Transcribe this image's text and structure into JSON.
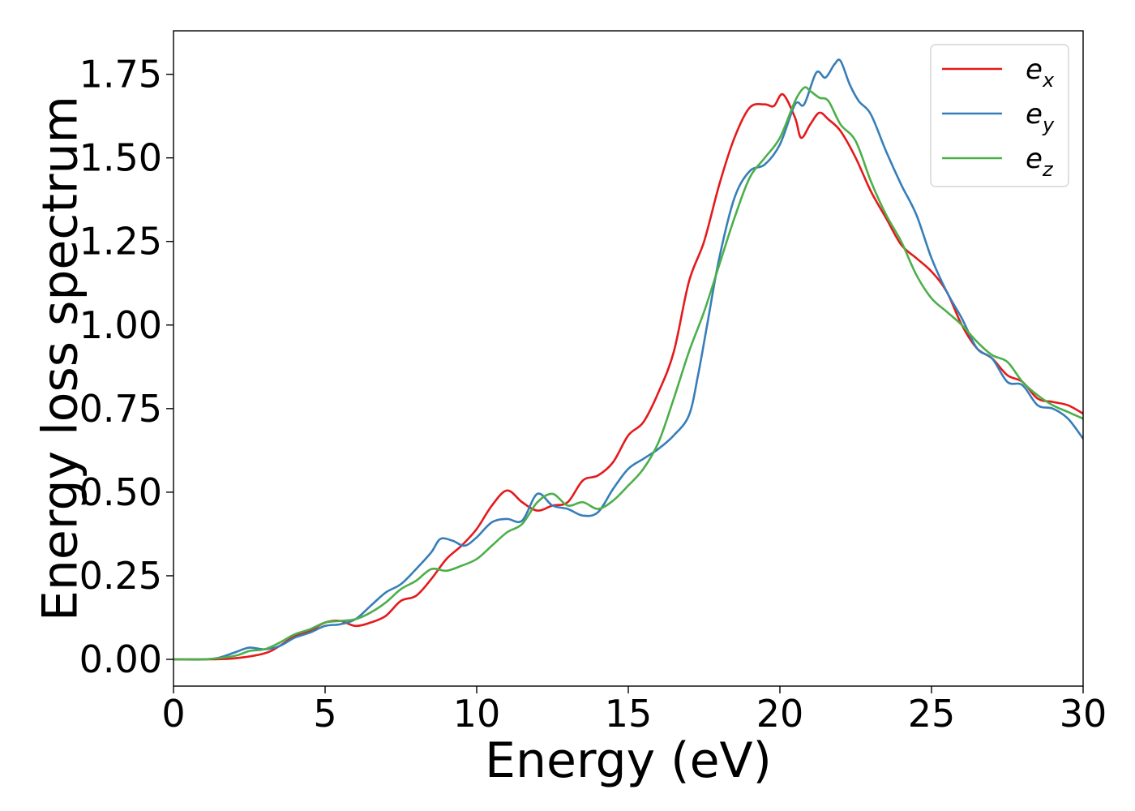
{
  "chart_data": {
    "type": "line",
    "title": "",
    "xlabel": "Energy (eV)",
    "ylabel": "Energy loss spectrum",
    "xlim": [
      0,
      30
    ],
    "ylim": [
      -0.08,
      1.88
    ],
    "xticks": [
      0,
      5,
      10,
      15,
      20,
      25,
      30
    ],
    "xtick_labels": [
      "0",
      "5",
      "10",
      "15",
      "20",
      "25",
      "30"
    ],
    "yticks": [
      0.0,
      0.25,
      0.5,
      0.75,
      1.0,
      1.25,
      1.5,
      1.75
    ],
    "ytick_labels": [
      "0.00",
      "0.25",
      "0.50",
      "0.75",
      "1.00",
      "1.25",
      "1.50",
      "1.75"
    ],
    "grid": false,
    "legend_position": "top-right",
    "series": [
      {
        "name": "e_x",
        "label_base": "e",
        "label_sub": "x",
        "color": "#e41a1c",
        "x": [
          0,
          1,
          2,
          3,
          3.5,
          4,
          4.5,
          5,
          5.5,
          6,
          6.5,
          7,
          7.5,
          8,
          8.5,
          9,
          9.5,
          10,
          10.5,
          11,
          11.5,
          12,
          12.5,
          13,
          13.5,
          14,
          14.5,
          15,
          15.5,
          16,
          16.5,
          17,
          17.5,
          18,
          18.5,
          19,
          19.5,
          19.8,
          20.1,
          20.5,
          20.7,
          21,
          21.3,
          21.6,
          22,
          22.5,
          23,
          23.5,
          24,
          24.5,
          25,
          25.5,
          26,
          26.5,
          27,
          27.5,
          28,
          28.5,
          29,
          29.5,
          30
        ],
        "y": [
          0.0,
          0.0,
          0.003,
          0.018,
          0.04,
          0.07,
          0.085,
          0.11,
          0.115,
          0.1,
          0.11,
          0.13,
          0.175,
          0.19,
          0.24,
          0.3,
          0.34,
          0.39,
          0.46,
          0.505,
          0.47,
          0.445,
          0.46,
          0.47,
          0.535,
          0.55,
          0.59,
          0.67,
          0.71,
          0.8,
          0.92,
          1.13,
          1.25,
          1.42,
          1.56,
          1.65,
          1.66,
          1.655,
          1.69,
          1.62,
          1.56,
          1.6,
          1.635,
          1.615,
          1.58,
          1.5,
          1.4,
          1.32,
          1.24,
          1.2,
          1.16,
          1.1,
          1.0,
          0.93,
          0.9,
          0.85,
          0.83,
          0.78,
          0.77,
          0.76,
          0.735
        ]
      },
      {
        "name": "e_y",
        "label_base": "e",
        "label_sub": "y",
        "color": "#377eb8",
        "x": [
          0,
          1,
          1.5,
          2,
          2.5,
          3,
          3.5,
          4,
          4.5,
          5,
          5.5,
          6,
          6.5,
          7,
          7.5,
          8,
          8.5,
          8.8,
          9.2,
          9.6,
          10,
          10.5,
          11,
          11.5,
          12,
          12.5,
          13,
          13.5,
          14,
          14.5,
          15,
          15.5,
          16,
          16.5,
          17,
          17.3,
          17.6,
          18,
          18.5,
          19,
          19.5,
          20,
          20.5,
          20.8,
          21.2,
          21.5,
          21.8,
          22,
          22.3,
          22.6,
          23,
          23.5,
          24,
          24.5,
          25,
          25.5,
          26,
          26.5,
          27,
          27.5,
          28,
          28.5,
          29,
          29.5,
          30
        ],
        "y": [
          0.0,
          0.0,
          0.005,
          0.02,
          0.035,
          0.03,
          0.04,
          0.065,
          0.08,
          0.1,
          0.105,
          0.12,
          0.16,
          0.2,
          0.225,
          0.27,
          0.32,
          0.36,
          0.355,
          0.34,
          0.365,
          0.41,
          0.42,
          0.415,
          0.495,
          0.46,
          0.45,
          0.43,
          0.44,
          0.51,
          0.57,
          0.6,
          0.63,
          0.67,
          0.73,
          0.85,
          1.0,
          1.2,
          1.38,
          1.46,
          1.48,
          1.54,
          1.66,
          1.66,
          1.755,
          1.74,
          1.78,
          1.79,
          1.72,
          1.67,
          1.63,
          1.52,
          1.42,
          1.33,
          1.2,
          1.1,
          1.02,
          0.93,
          0.9,
          0.83,
          0.82,
          0.76,
          0.75,
          0.72,
          0.66
        ]
      },
      {
        "name": "e_z",
        "label_base": "e",
        "label_sub": "z",
        "color": "#4daf4a",
        "x": [
          0,
          1,
          2,
          2.5,
          3,
          3.5,
          4,
          4.5,
          5,
          5.5,
          6,
          6.5,
          7,
          7.5,
          8,
          8.5,
          9,
          9.5,
          10,
          10.5,
          11,
          11.5,
          12,
          12.5,
          13,
          13.5,
          14,
          14.5,
          15,
          15.5,
          16,
          16.5,
          17,
          17.5,
          18,
          18.5,
          19,
          19.5,
          20,
          20.5,
          20.8,
          21,
          21.3,
          21.6,
          22,
          22.5,
          23,
          23.5,
          24,
          24.5,
          25,
          25.5,
          26,
          26.5,
          27,
          27.5,
          28,
          28.5,
          29,
          29.5,
          30
        ],
        "y": [
          0.0,
          0.0,
          0.01,
          0.025,
          0.03,
          0.05,
          0.075,
          0.09,
          0.11,
          0.115,
          0.12,
          0.14,
          0.17,
          0.21,
          0.235,
          0.27,
          0.265,
          0.28,
          0.3,
          0.34,
          0.38,
          0.405,
          0.47,
          0.495,
          0.46,
          0.47,
          0.45,
          0.475,
          0.52,
          0.57,
          0.65,
          0.78,
          0.92,
          1.04,
          1.18,
          1.32,
          1.44,
          1.5,
          1.56,
          1.67,
          1.71,
          1.7,
          1.68,
          1.67,
          1.6,
          1.55,
          1.43,
          1.33,
          1.25,
          1.15,
          1.08,
          1.04,
          1.0,
          0.95,
          0.91,
          0.89,
          0.83,
          0.79,
          0.76,
          0.74,
          0.72
        ]
      }
    ]
  }
}
